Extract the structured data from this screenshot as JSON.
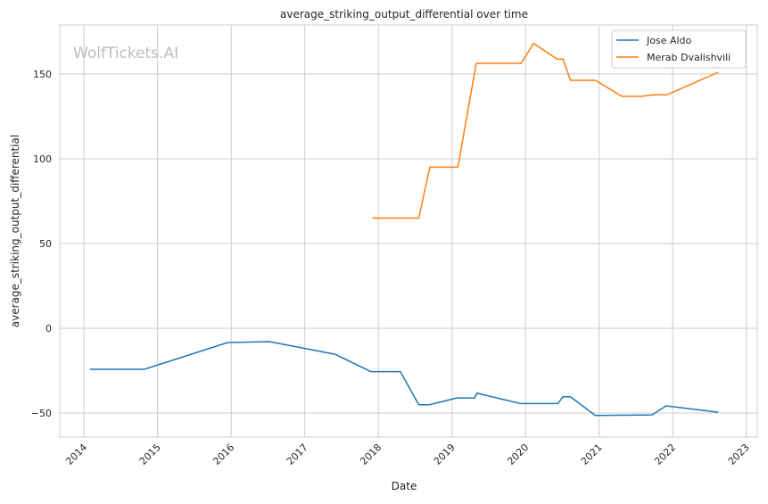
{
  "chart_data": {
    "type": "line",
    "title": "average_striking_output_differential over time",
    "xlabel": "Date",
    "ylabel": "average_striking_output_differential",
    "watermark": "WolfTickets.AI",
    "xlim": [
      2013.67,
      2023.15
    ],
    "ylim": [
      -64.2,
      178.9
    ],
    "xticks": [
      2014,
      2015,
      2016,
      2017,
      2018,
      2019,
      2020,
      2021,
      2022,
      2023
    ],
    "xtick_labels": [
      "2014",
      "2015",
      "2016",
      "2017",
      "2018",
      "2019",
      "2020",
      "2021",
      "2022",
      "2023"
    ],
    "yticks": [
      -50,
      0,
      50,
      100,
      150
    ],
    "ytick_labels": [
      "−50",
      "0",
      "50",
      "100",
      "150"
    ],
    "grid": true,
    "legend_position": "top-right",
    "series": [
      {
        "name": "Jose Aldo",
        "color": "#1f77b4",
        "x": [
          2014.08,
          2014.82,
          2015.95,
          2016.52,
          2017.41,
          2017.9,
          2018.3,
          2018.55,
          2018.69,
          2019.07,
          2019.31,
          2019.34,
          2019.93,
          2020.44,
          2020.51,
          2020.61,
          2020.95,
          2021.72,
          2021.91,
          2022.62
        ],
        "y": [
          -24.2,
          -24.2,
          -8.4,
          -7.9,
          -15.3,
          -25.6,
          -25.6,
          -45.1,
          -45.1,
          -41.1,
          -41.1,
          -38.3,
          -44.4,
          -44.4,
          -40.4,
          -40.4,
          -51.4,
          -51.1,
          -45.8,
          -49.5
        ]
      },
      {
        "name": "Merab Dvalishvili",
        "color": "#ff7f0e",
        "x": [
          2017.92,
          2018.55,
          2018.7,
          2019.08,
          2019.33,
          2019.94,
          2020.11,
          2020.43,
          2020.51,
          2020.61,
          2020.95,
          2021.31,
          2021.58,
          2021.74,
          2021.92,
          2022.62
        ],
        "y": [
          65,
          65,
          95,
          95,
          156.3,
          156.3,
          168,
          158.8,
          158.8,
          146.3,
          146.3,
          136.8,
          136.8,
          137.7,
          137.7,
          151
        ]
      }
    ]
  }
}
